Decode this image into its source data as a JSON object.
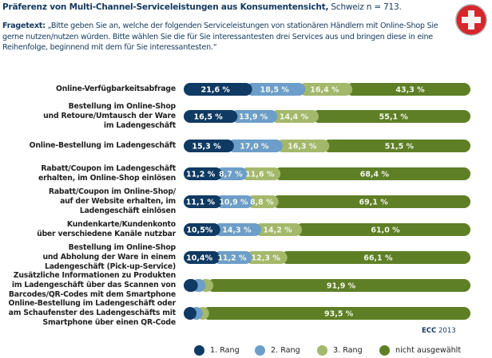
{
  "header": {
    "title_bold": "Präferenz von Multi-Channel-Serviceleistungen aus Konsumentensicht,",
    "title_rest": " Schweiz n = 713.",
    "question_label": "Fragetext:",
    "question_text": " „Bitte geben Sie an, welche der folgenden Serviceleistungen von stationären Händlern mit Online-Shop Sie gerne nutzen/nutzen würden. Bitte wählen Sie die für Sie interessantesten drei Services aus und bringen diese in eine Reihenfolge, beginnend mit dem für Sie interessantesten.“",
    "flag_icon": "swiss-flag-icon"
  },
  "source": {
    "org": "ECC",
    "year": "2013"
  },
  "colors": {
    "rang1": "#0f3a63",
    "rang2": "#6d9ec9",
    "rang3": "#a3b86a",
    "nicht": "#5e7f26",
    "flag_red": "#d7262c"
  },
  "chart_data": {
    "type": "bar",
    "orientation": "horizontal",
    "stacked": true,
    "title": "Präferenz von Multi-Channel-Serviceleistungen aus Konsumentensicht, Schweiz n = 713.",
    "xlabel": "",
    "ylabel": "",
    "xlim": [
      0,
      100
    ],
    "unit": "%",
    "legend_position": "bottom",
    "categories": [
      "Online-Verfügbarkeitsabfrage",
      "Bestellung im Online-Shop\nund Retoure/Umtausch der Ware\nim Ladengeschäft",
      "Online-Bestellung im Ladengeschäft",
      "Rabatt/Coupon im Ladengeschäft\nerhalten, im Online-Shop einlösen",
      "Rabatt/Coupon im Online-Shop/\nauf der Website erhalten, im\nLadengeschäft einlösen",
      "Kundenkarte/Kundenkonto\nüber verschiedene Kanäle nutzbar",
      "Bestellung im Online-Shop\nund Abholung der Ware in einem\nLadengeschäft (Pick-up-Service)",
      "Zusätzliche Informationen zu Produkten\nim Ladengeschäft über das Scannen von\nBarcodes/QR-Codes mit dem Smartphone",
      "Online-Bestellung im Ladengeschäft oder\nam Schaufenster des Ladengeschäfts mit\nSmartphone über einen QR-Code"
    ],
    "series": [
      {
        "name": "1. Rang",
        "values": [
          21.6,
          16.5,
          15.3,
          11.2,
          11.1,
          10.5,
          10.4,
          2.7,
          2.2
        ]
      },
      {
        "name": "2. Rang",
        "values": [
          18.5,
          13.9,
          17.0,
          8.7,
          10.9,
          14.3,
          11.2,
          2.7,
          2.2
        ]
      },
      {
        "name": "3. Rang",
        "values": [
          16.4,
          14.4,
          16.3,
          11.6,
          8.8,
          14.2,
          12.3,
          2.7,
          2.1
        ]
      },
      {
        "name": "nicht ausgewählt",
        "values": [
          43.3,
          55.1,
          51.5,
          68.4,
          69.1,
          61.0,
          66.1,
          91.9,
          93.5
        ]
      }
    ],
    "data_labels": [
      [
        "21,6 %",
        "18,5 %",
        "16,4 %",
        "43,3 %"
      ],
      [
        "16,5 %",
        "13,9 %",
        "14,4 %",
        "55,1 %"
      ],
      [
        "15,3 %",
        "17,0 %",
        "16,3 %",
        "51,5 %"
      ],
      [
        "11,2 %",
        "8,7 %",
        "11,6 %",
        "68,4 %"
      ],
      [
        "11,1 %",
        "10,9 %",
        "8,8 %",
        "69,1 %"
      ],
      [
        "10,5%",
        "14,3 %",
        "14,2 %",
        "61,0 %"
      ],
      [
        "10,4%",
        "11,2 %",
        "12,3 %",
        "66,1 %"
      ],
      [
        "",
        "",
        "",
        "91,9 %"
      ],
      [
        "",
        "",
        "",
        "93,5 %"
      ]
    ]
  },
  "legend": [
    {
      "label": "1. Rang",
      "color_key": "rang1"
    },
    {
      "label": "2. Rang",
      "color_key": "rang2"
    },
    {
      "label": "3. Rang",
      "color_key": "rang3"
    },
    {
      "label": "nicht ausgewählt",
      "color_key": "nicht"
    }
  ]
}
